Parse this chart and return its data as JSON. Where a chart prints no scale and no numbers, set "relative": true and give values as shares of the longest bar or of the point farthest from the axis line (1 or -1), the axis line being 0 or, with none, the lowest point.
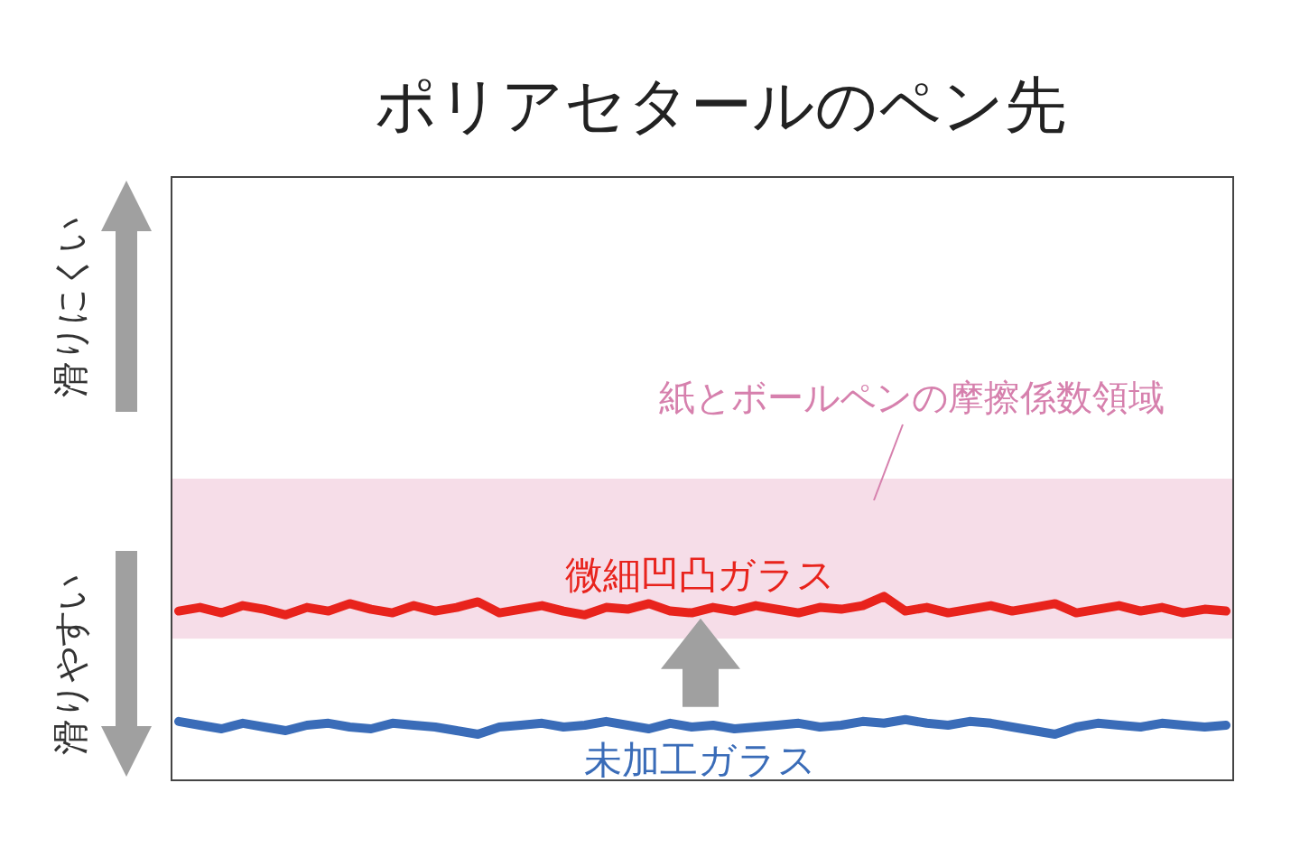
{
  "chart_data": {
    "type": "line",
    "title": "ポリアセタールのペン先",
    "relative": true,
    "categories": [
      null,
      null,
      null,
      null,
      null,
      null,
      null,
      null,
      null,
      null,
      null,
      null,
      null,
      null,
      null,
      null,
      null,
      null,
      null,
      null,
      null,
      null,
      null,
      null,
      null,
      null,
      null,
      null,
      null,
      null,
      null,
      null,
      null,
      null,
      null,
      null,
      null,
      null,
      null,
      null,
      null,
      null,
      null,
      null,
      null,
      null,
      null,
      null,
      null,
      null
    ],
    "series": [
      {
        "name": "微細凹凸ガラス",
        "color": "#e8231c",
        "values": [
          0.92,
          0.94,
          0.91,
          0.95,
          0.93,
          0.9,
          0.94,
          0.92,
          0.96,
          0.93,
          0.91,
          0.95,
          0.92,
          0.94,
          0.97,
          0.91,
          0.93,
          0.95,
          0.92,
          0.9,
          0.94,
          0.93,
          0.96,
          0.92,
          0.91,
          0.94,
          0.92,
          0.95,
          0.93,
          0.91,
          0.94,
          0.93,
          0.95,
          1.0,
          0.92,
          0.94,
          0.91,
          0.93,
          0.95,
          0.92,
          0.94,
          0.96,
          0.91,
          0.93,
          0.95,
          0.92,
          0.94,
          0.91,
          0.93,
          0.92
        ]
      },
      {
        "name": "未加工ガラス",
        "color": "#3a6cb8",
        "values": [
          0.32,
          0.3,
          0.28,
          0.31,
          0.29,
          0.27,
          0.3,
          0.31,
          0.29,
          0.28,
          0.31,
          0.3,
          0.29,
          0.27,
          0.25,
          0.29,
          0.3,
          0.31,
          0.29,
          0.3,
          0.32,
          0.3,
          0.28,
          0.31,
          0.29,
          0.3,
          0.28,
          0.29,
          0.3,
          0.31,
          0.29,
          0.3,
          0.32,
          0.31,
          0.33,
          0.31,
          0.3,
          0.32,
          0.31,
          0.29,
          0.27,
          0.25,
          0.29,
          0.31,
          0.3,
          0.29,
          0.31,
          0.3,
          0.29,
          0.3
        ]
      }
    ],
    "bands": [
      {
        "axis": "y",
        "from": 0.77,
        "to": 1.64,
        "label": "紙とボールペンの摩擦係数領域",
        "color": "#f6dde8"
      }
    ],
    "annotations": [
      "滑りにくい",
      "滑りやすい"
    ]
  }
}
